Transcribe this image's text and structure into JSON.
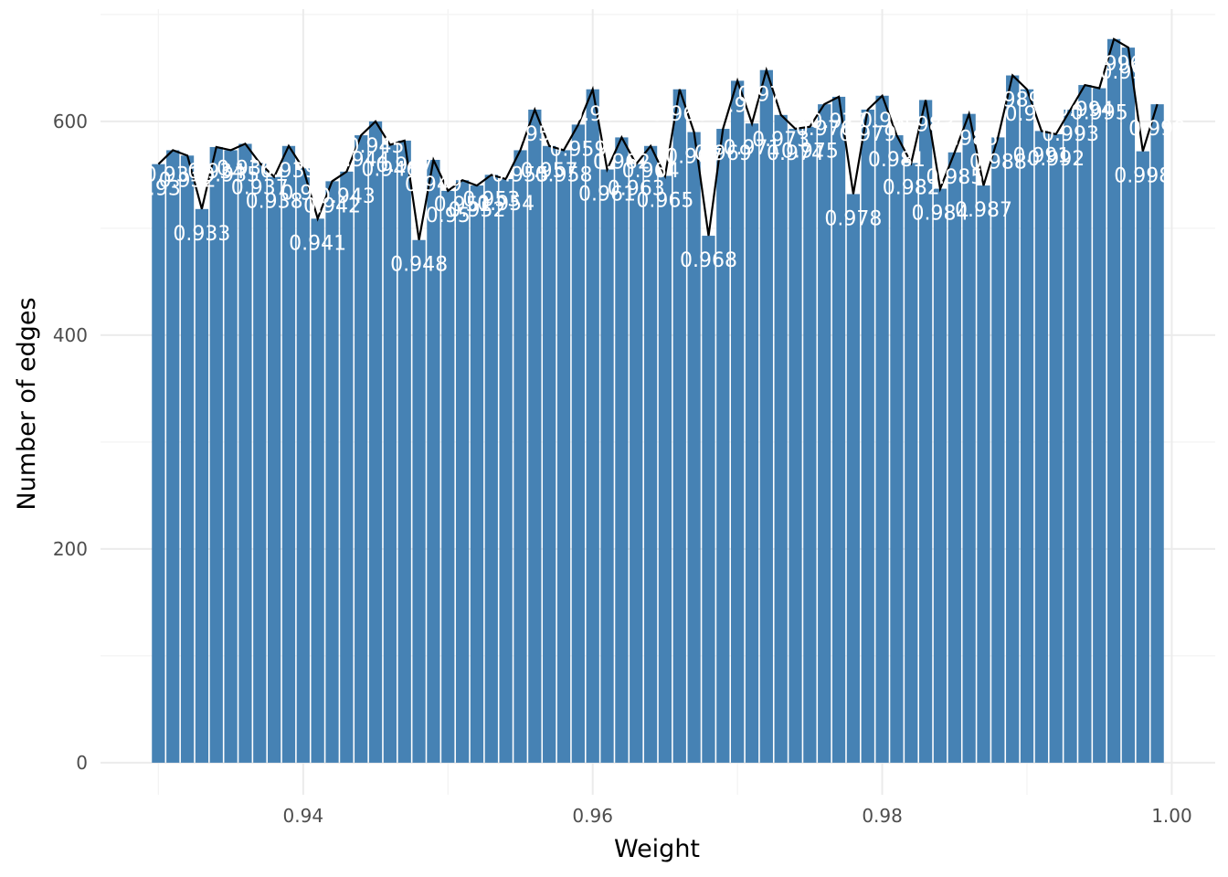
{
  "chart_data": {
    "type": "bar",
    "xlabel": "Weight",
    "ylabel": "Number of edges",
    "x_ticks": [
      0.94,
      0.96,
      0.98,
      1.0
    ],
    "x_tick_labels": [
      "0.94",
      "0.96",
      "0.98",
      "1.00"
    ],
    "y_ticks": [
      0,
      200,
      400,
      600
    ],
    "y_tick_labels": [
      "0",
      "200",
      "400",
      "600"
    ],
    "xlim": [
      0.926,
      1.003
    ],
    "ylim": [
      -30,
      705
    ],
    "grid": true,
    "legend": "none",
    "bar_color": "#4682b4",
    "line_color": "#000000",
    "x": [
      0.93,
      0.931,
      0.932,
      0.933,
      0.934,
      0.935,
      0.936,
      0.937,
      0.938,
      0.939,
      0.94,
      0.941,
      0.942,
      0.943,
      0.944,
      0.945,
      0.946,
      0.947,
      0.948,
      0.949,
      0.95,
      0.951,
      0.952,
      0.953,
      0.954,
      0.955,
      0.956,
      0.957,
      0.958,
      0.959,
      0.96,
      0.961,
      0.962,
      0.963,
      0.964,
      0.965,
      0.966,
      0.967,
      0.968,
      0.969,
      0.97,
      0.971,
      0.972,
      0.973,
      0.974,
      0.975,
      0.976,
      0.977,
      0.978,
      0.979,
      0.98,
      0.981,
      0.982,
      0.983,
      0.984,
      0.985,
      0.986,
      0.987,
      0.988,
      0.989,
      0.99,
      0.991,
      0.992,
      0.993,
      0.994,
      0.995,
      0.996,
      0.997,
      0.998,
      0.999
    ],
    "values": [
      560,
      573,
      568,
      518,
      576,
      573,
      579,
      561,
      548,
      577,
      556,
      509,
      544,
      553,
      587,
      600,
      578,
      582,
      489,
      564,
      535,
      545,
      540,
      550,
      546,
      573,
      611,
      577,
      573,
      597,
      630,
      555,
      585,
      560,
      577,
      549,
      630,
      590,
      493,
      593,
      638,
      598,
      648,
      606,
      593,
      595,
      616,
      623,
      532,
      611,
      624,
      587,
      561,
      620,
      537,
      571,
      607,
      540,
      585,
      643,
      630,
      591,
      588,
      611,
      634,
      631,
      677,
      669,
      572,
      616
    ],
    "labels": [
      "0.93",
      "0.931",
      "0.932",
      "0.933",
      "0.934",
      "0.935",
      "0.936",
      "0.937",
      "0.938",
      "0.939",
      "0.94",
      "0.941",
      "0.942",
      "0.943",
      "0.944",
      "0.945",
      "0.946",
      "0.947",
      "0.948",
      "0.949",
      "0.95",
      "0.951",
      "0.952",
      "0.953",
      "0.954",
      "0.955",
      "0.956",
      "0.957",
      "0.958",
      "0.959",
      "0.96",
      "0.961",
      "0.962",
      "0.963",
      "0.964",
      "0.965",
      "0.966",
      "0.967",
      "0.968",
      "0.969",
      "0.97",
      "0.971",
      "0.972",
      "0.973",
      "0.974",
      "0.975",
      "0.976",
      "0.977",
      "0.978",
      "0.979",
      "0.98",
      "0.981",
      "0.982",
      "0.983",
      "0.984",
      "0.985",
      "0.986",
      "0.987",
      "0.988",
      "0.989",
      "0.99",
      "0.991",
      "0.992",
      "0.993",
      "0.994",
      "0.995",
      "0.996",
      "0.997",
      "0.998",
      "0.999"
    ]
  }
}
